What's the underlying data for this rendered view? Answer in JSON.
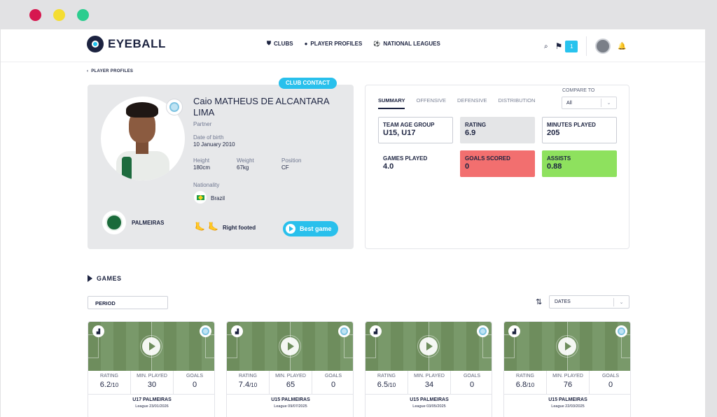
{
  "window": {
    "dots": [
      "#d6184f",
      "#f4dd32",
      "#2ccd8f"
    ]
  },
  "nav": {
    "logo_text": "EYEBALL",
    "menu": [
      {
        "icon": "shield-icon",
        "glyph": "⛊",
        "label": "CLUBS"
      },
      {
        "icon": "person-icon",
        "glyph": "●",
        "label": "PLAYER PROFILES"
      },
      {
        "icon": "ball-icon",
        "glyph": "⚽",
        "label": "NATIONAL LEAGUES"
      }
    ],
    "flag_count": "1"
  },
  "breadcrumb": {
    "back_label": "PLAYER PROFILES"
  },
  "profile": {
    "contact_label": "CLUB CONTACT",
    "name": "Caio MATHEUS DE ALCANTARA LIMA",
    "role": "Partner",
    "dob_label": "Date of birth",
    "dob": "10 January 2010",
    "height_label": "Height",
    "height": "180cm",
    "weight_label": "Weight",
    "weight": "67kg",
    "position_label": "Position",
    "position": "CF",
    "nationality_label": "Nationality",
    "nationality": "Brazil",
    "club": "PALMEIRAS",
    "foot": "Right footed",
    "best_game_label": "Best game"
  },
  "stats": {
    "tabs": [
      "SUMMARY",
      "OFFENSIVE",
      "DEFENSIVE",
      "DISTRIBUTION"
    ],
    "active_tab": 0,
    "compare_label": "COMPARE TO",
    "compare_value": "All",
    "cards": [
      {
        "label": "TEAM AGE GROUP",
        "value": "U15, U17",
        "style": "outline"
      },
      {
        "label": "RATING",
        "value": "6.9",
        "style": "gray"
      },
      {
        "label": "MINUTES PLAYED",
        "value": "205",
        "style": "outline"
      },
      {
        "label": "GAMES PLAYED",
        "value": "4.0",
        "style": "plain"
      },
      {
        "label": "GOALS SCORED",
        "value": "0",
        "style": "red"
      },
      {
        "label": "ASSISTS",
        "value": "0.88",
        "style": "green"
      }
    ]
  },
  "games": {
    "title": "GAMES",
    "period_label": "PERIOD",
    "dates_label": "DATES",
    "col_labels": [
      "RATING",
      "MIN. PLAYED",
      "GOALS"
    ],
    "list": [
      {
        "rating": "6.2",
        "rating_max": "/10",
        "minutes": "30",
        "goals": "0",
        "teams": "U17 PALMEIRAS",
        "league": "League 23/01/2026"
      },
      {
        "rating": "7.4",
        "rating_max": "/10",
        "minutes": "65",
        "goals": "0",
        "teams": "U15 PALMEIRAS",
        "league": "League 09/07/2025"
      },
      {
        "rating": "6.5",
        "rating_max": "/10",
        "minutes": "34",
        "goals": "0",
        "teams": "U15 PALMEIRAS",
        "league": "League 03/05/2025"
      },
      {
        "rating": "6.8",
        "rating_max": "/10",
        "minutes": "76",
        "goals": "0",
        "teams": "U15 PALMEIRAS",
        "league": "League 22/03/2025"
      }
    ]
  }
}
